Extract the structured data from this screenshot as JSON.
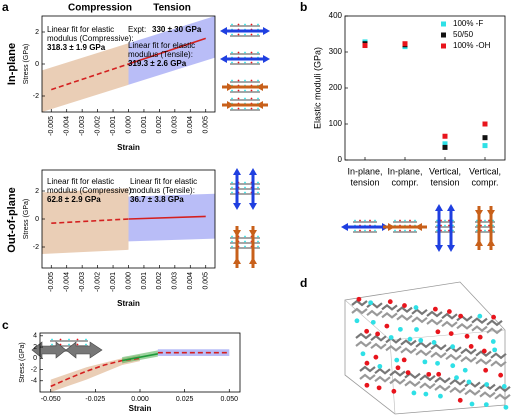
{
  "panel_labels": {
    "a": "a",
    "b": "b",
    "c": "c",
    "d": "d"
  },
  "column_headers": [
    "Compression",
    "Tension"
  ],
  "row_labels": [
    "In-plane",
    "Out-of-plane"
  ],
  "chart_data": [
    {
      "type": "line",
      "xlabel": "Strain",
      "ylabel": "Stress (GPa)",
      "xlim": [
        -0.0056,
        0.0056
      ],
      "xticks": [
        -0.005,
        -0.004,
        -0.003,
        -0.002,
        -0.001,
        {
          "value": 0,
          "label": "0.000"
        },
        0.001,
        0.002,
        0.003,
        0.004,
        0.005
      ],
      "ylim": [
        -3,
        3
      ],
      "yticks": [
        -2,
        0,
        2
      ],
      "bands": [
        {
          "color": "#d9a57a",
          "x": [
            -0.0056,
            0
          ],
          "low": [
            -3,
            -1.3
          ],
          "high": [
            -0.4,
            1.3
          ]
        },
        {
          "color": "#7f86f0",
          "x": [
            0,
            0.0056
          ],
          "low": [
            -1.3,
            0.4
          ],
          "high": [
            1.3,
            3
          ]
        }
      ],
      "series": [
        {
          "color": "#d42020",
          "dash": true,
          "x": [
            -0.005,
            0
          ],
          "values": [
            -1.6,
            0
          ]
        },
        {
          "color": "#d42020",
          "dash": false,
          "x": [
            0,
            0.005
          ],
          "values": [
            0,
            1.6
          ]
        }
      ],
      "annotations": [
        {
          "lines": [
            "Linear fit for elastic",
            "modulus (Compressive):"
          ],
          "value": "318.3 ± 1.9 GPa"
        },
        {
          "lines": [
            "Expt:"
          ],
          "value": "330 ± 30 GPa",
          "inline": true
        },
        {
          "lines": [
            "Linear fit for elastic",
            "modulus (Tensile):"
          ],
          "value": "319.3 ± 2.6 GPa"
        }
      ]
    },
    {
      "type": "line",
      "xlabel": "Strain",
      "ylabel": "Stress (GPa)",
      "xlim": [
        -0.0056,
        0.0056
      ],
      "xticks": [
        -0.005,
        -0.004,
        -0.003,
        -0.002,
        -0.001,
        {
          "value": 0,
          "label": "0.000"
        },
        0.001,
        0.002,
        0.003,
        0.004,
        0.005
      ],
      "ylim": [
        -3.5,
        3.5
      ],
      "yticks": [
        -2,
        0,
        2
      ],
      "bands": [
        {
          "color": "#d9a57a",
          "x": [
            -0.0056,
            0
          ],
          "low": [
            -2.5,
            -2.2
          ],
          "high": [
            1.9,
            2.2
          ]
        },
        {
          "color": "#7f86f0",
          "x": [
            0,
            0.0056
          ],
          "low": [
            -1.6,
            -1.4
          ],
          "high": [
            1.6,
            1.8
          ]
        }
      ],
      "series": [
        {
          "color": "#d42020",
          "dash": true,
          "x": [
            -0.005,
            0
          ],
          "values": [
            -0.3,
            0
          ]
        },
        {
          "color": "#d42020",
          "dash": false,
          "x": [
            0,
            0.005
          ],
          "values": [
            0,
            0.18
          ]
        }
      ],
      "annotations": [
        {
          "lines": [
            "Linear fit for elastic",
            "modulus (Compressive):"
          ],
          "value": "62.8 ± 2.9 GPa"
        },
        {
          "lines": [
            "Linear fit for elastic",
            "modulus (Tensile):"
          ],
          "value": "36.7 ± 3.8 GPa"
        }
      ]
    },
    {
      "type": "scatter",
      "ylabel": "Elastic moduli (GPa)",
      "categories": [
        [
          "In-plane,",
          "tension"
        ],
        [
          "In-plane,",
          "compr."
        ],
        [
          "Vertical,",
          "tension"
        ],
        [
          "Vertical,",
          "compr."
        ]
      ],
      "ylim": [
        0,
        400
      ],
      "yticks": [
        0,
        100,
        200,
        300,
        400
      ],
      "legend": "upper right",
      "series": [
        {
          "name": "100% -F",
          "color": "#2ee0e6",
          "values": [
            328,
            315,
            45,
            40
          ]
        },
        {
          "name": "50/50",
          "color": "#111111",
          "values": [
            323,
            320,
            35,
            62
          ]
        },
        {
          "name": "100% -OH",
          "color": "#e8141c",
          "values": [
            318,
            323,
            66,
            100
          ]
        }
      ]
    },
    {
      "type": "line",
      "xlabel": "Strain",
      "ylabel": "Stress (GPa)",
      "xlim": [
        -0.056,
        0.056
      ],
      "xticks": [
        {
          "value": -0.05,
          "label": "-0.050"
        },
        -0.025,
        {
          "value": 0,
          "label": "0.000"
        },
        0.025,
        {
          "value": 0.05,
          "label": "0.050"
        }
      ],
      "ylim": [
        -6,
        4.5
      ],
      "yticks": [
        -4,
        -2,
        0,
        2,
        4
      ],
      "bands": [
        {
          "color": "#d9a57a",
          "x": [
            -0.05,
            -0.03,
            -0.01,
            0
          ],
          "low": [
            -6,
            -3.8,
            -1.2,
            -0.5
          ],
          "high": [
            -3.8,
            -1.6,
            0,
            0.6
          ]
        },
        {
          "color": "#4caf50",
          "x": [
            -0.01,
            0.01
          ],
          "low": [
            -0.9,
            0.3
          ],
          "high": [
            0.2,
            1.4
          ]
        },
        {
          "color": "#7f86f0",
          "x": [
            0.01,
            0.05
          ],
          "low": [
            0.4,
            0.4
          ],
          "high": [
            1.6,
            1.6
          ]
        }
      ],
      "series": [
        {
          "color": "#d42020",
          "dash": true,
          "x": [
            -0.05,
            -0.04,
            -0.03,
            -0.02,
            -0.01,
            0
          ],
          "values": [
            -5,
            -3.6,
            -2.3,
            -1.2,
            -0.4,
            0
          ]
        },
        {
          "color": "#1f9a3a",
          "dash": false,
          "x": [
            -0.01,
            0,
            0.01
          ],
          "values": [
            -0.4,
            0.2,
            0.8
          ]
        },
        {
          "color": "#d42020",
          "dash": true,
          "x": [
            0.01,
            0.05
          ],
          "values": [
            1,
            1
          ]
        }
      ]
    }
  ]
}
